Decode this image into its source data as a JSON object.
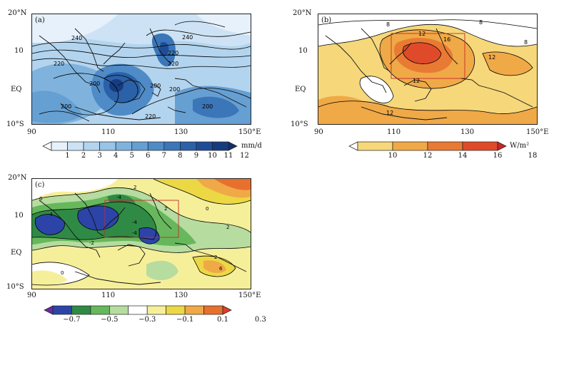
{
  "figure": {
    "panels": [
      {
        "id": "a",
        "label": "(a)",
        "lat_ticks": [
          "20°N",
          "10",
          "EQ",
          "10°S"
        ],
        "lon_ticks": [
          "90",
          "110",
          "130",
          "150°E"
        ],
        "contour_labels": [
          "240",
          "240",
          "220",
          "220",
          "220",
          "200",
          "200",
          "200",
          "200",
          "200",
          "220"
        ],
        "colorbar": {
          "labels": [
            "1",
            "2",
            "3",
            "4",
            "5",
            "6",
            "7",
            "8",
            "9",
            "10",
            "11",
            "12"
          ],
          "unit": "mm/d",
          "colors": [
            "#ffffff",
            "#e6f1fb",
            "#cde3f5",
            "#b3d4ee",
            "#98c4e6",
            "#7fb3dd",
            "#669fd2",
            "#4f8bc6",
            "#3b76b8",
            "#2b61a8",
            "#1f4d95",
            "#163c80",
            "#10306b"
          ]
        }
      },
      {
        "id": "b",
        "label": "(b)",
        "lat_ticks": [
          "20°N",
          "10",
          "EQ",
          "10°S"
        ],
        "lon_ticks": [
          "90",
          "110",
          "130",
          "150°E"
        ],
        "contour_labels": [
          "8",
          "8",
          "8",
          "12",
          "12",
          "12",
          "12",
          "16"
        ],
        "colorbar": {
          "labels": [
            "10",
            "12",
            "14",
            "16",
            "18"
          ],
          "unit": "W/m²",
          "colors": [
            "#ffffff",
            "#f6d77a",
            "#f0a947",
            "#e97a33",
            "#df4b2a",
            "#c92626"
          ]
        }
      },
      {
        "id": "c",
        "label": "(c)",
        "lat_ticks": [
          "20°N",
          "10",
          "EQ",
          "10°S"
        ],
        "lon_ticks": [
          "90",
          "110",
          "130",
          "150°E"
        ],
        "contour_labels": [
          "-4",
          "-4",
          "-4",
          "-4",
          "0",
          "0",
          "0",
          "2",
          "2",
          "2",
          "-2",
          "2",
          "6"
        ],
        "colorbar": {
          "labels": [
            "−0.7",
            "−0.5",
            "−0.3",
            "−0.1",
            "0.1",
            "0.3"
          ],
          "unit": "",
          "colors": [
            "#6a2aa6",
            "#2c44a8",
            "#2f8a45",
            "#67b75d",
            "#b6dca0",
            "#ffffff",
            "#f6ef9a",
            "#ebd844",
            "#f0a947",
            "#e8702e",
            "#dd3e2a"
          ]
        }
      }
    ]
  }
}
